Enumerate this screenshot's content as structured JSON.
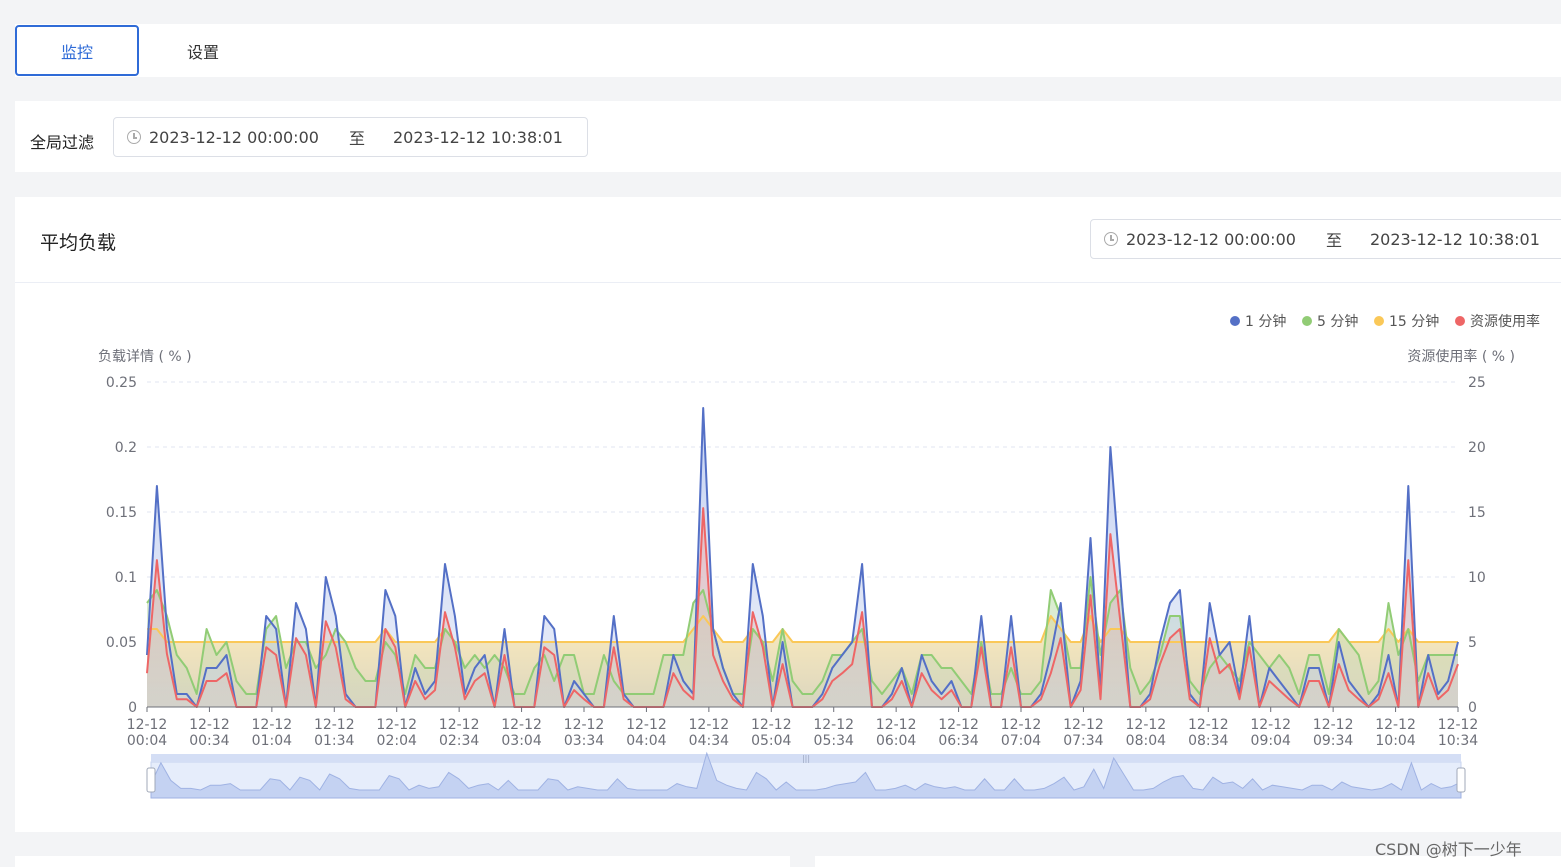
{
  "tabs": [
    {
      "label": "监控",
      "active": true
    },
    {
      "label": "设置",
      "active": false
    }
  ],
  "global_filter": {
    "label": "全局过滤",
    "start": "2023-12-12 00:00:00",
    "separator": "至",
    "end": "2023-12-12 10:38:01"
  },
  "panel": {
    "title": "平均负载",
    "start": "2023-12-12 00:00:00",
    "separator": "至",
    "end": "2023-12-12 10:38:01"
  },
  "watermark": "CSDN @树下一少年",
  "colors": {
    "accent": "#2f6bd7",
    "s1": "#5470c6",
    "s5": "#91cc75",
    "s15": "#fac858",
    "res": "#ee6666"
  },
  "chart_data": {
    "type": "line",
    "ylabel": "负载详情 ( % )",
    "y2label": "资源使用率 ( % )",
    "ylim": [
      0,
      0.25
    ],
    "y2lim": [
      0,
      25
    ],
    "yticks": [
      "0",
      "0.05",
      "0.1",
      "0.15",
      "0.2",
      "0.25"
    ],
    "y2ticks": [
      "0",
      "5",
      "10",
      "15",
      "20",
      "25"
    ],
    "x_ticks": [
      [
        "12-12",
        "00:04"
      ],
      [
        "12-12",
        "00:34"
      ],
      [
        "12-12",
        "01:04"
      ],
      [
        "12-12",
        "01:34"
      ],
      [
        "12-12",
        "02:04"
      ],
      [
        "12-12",
        "02:34"
      ],
      [
        "12-12",
        "03:04"
      ],
      [
        "12-12",
        "03:34"
      ],
      [
        "12-12",
        "04:04"
      ],
      [
        "12-12",
        "04:34"
      ],
      [
        "12-12",
        "05:04"
      ],
      [
        "12-12",
        "05:34"
      ],
      [
        "12-12",
        "06:04"
      ],
      [
        "12-12",
        "06:34"
      ],
      [
        "12-12",
        "07:04"
      ],
      [
        "12-12",
        "07:34"
      ],
      [
        "12-12",
        "08:04"
      ],
      [
        "12-12",
        "08:34"
      ],
      [
        "12-12",
        "09:04"
      ],
      [
        "12-12",
        "09:34"
      ],
      [
        "12-12",
        "10:04"
      ],
      [
        "12-12",
        "10:34"
      ]
    ],
    "legend_position": "top-right",
    "series": [
      {
        "name": "1 分钟",
        "values": [
          0.04,
          0.17,
          0.06,
          0.01,
          0.01,
          0,
          0.03,
          0.03,
          0.04,
          0,
          0,
          0,
          0.07,
          0.06,
          0,
          0.08,
          0.06,
          0,
          0.1,
          0.07,
          0.01,
          0,
          0,
          0,
          0.09,
          0.07,
          0,
          0.03,
          0.01,
          0.02,
          0.11,
          0.07,
          0.01,
          0.03,
          0.04,
          0,
          0.06,
          0,
          0,
          0,
          0.07,
          0.06,
          0,
          0.02,
          0.01,
          0,
          0,
          0.07,
          0.01,
          0,
          0,
          0,
          0,
          0.04,
          0.02,
          0.01,
          0.23,
          0.06,
          0.03,
          0.01,
          0,
          0.11,
          0.07,
          0,
          0.05,
          0,
          0,
          0,
          0.01,
          0.03,
          0.04,
          0.05,
          0.11,
          0,
          0,
          0.01,
          0.03,
          0,
          0.04,
          0.02,
          0.01,
          0.02,
          0,
          0,
          0.07,
          0,
          0,
          0.07,
          0,
          0,
          0.01,
          0.04,
          0.08,
          0,
          0.02,
          0.13,
          0.01,
          0.2,
          0.1,
          0,
          0,
          0.01,
          0.05,
          0.08,
          0.09,
          0.01,
          0,
          0.08,
          0.04,
          0.05,
          0.01,
          0.07,
          0,
          0.03,
          0.02,
          0.01,
          0,
          0.03,
          0.03,
          0,
          0.05,
          0.02,
          0.01,
          0,
          0.01,
          0.04,
          0,
          0.17,
          0,
          0.04,
          0.01,
          0.02,
          0.05
        ]
      },
      {
        "name": "5 分钟",
        "values": [
          0.08,
          0.09,
          0.07,
          0.04,
          0.03,
          0.01,
          0.06,
          0.04,
          0.05,
          0.02,
          0.01,
          0.01,
          0.06,
          0.07,
          0.03,
          0.05,
          0.05,
          0.03,
          0.04,
          0.06,
          0.05,
          0.03,
          0.02,
          0.02,
          0.05,
          0.04,
          0.01,
          0.04,
          0.03,
          0.03,
          0.06,
          0.05,
          0.03,
          0.04,
          0.03,
          0.04,
          0.03,
          0.01,
          0.01,
          0.03,
          0.04,
          0.02,
          0.04,
          0.04,
          0.01,
          0.01,
          0.04,
          0.02,
          0.01,
          0.01,
          0.01,
          0.01,
          0.04,
          0.04,
          0.04,
          0.08,
          0.09,
          0.06,
          0.03,
          0.01,
          0.01,
          0.06,
          0.05,
          0.02,
          0.06,
          0.02,
          0.01,
          0.01,
          0.02,
          0.04,
          0.04,
          0.05,
          0.06,
          0.02,
          0.01,
          0.02,
          0.03,
          0.01,
          0.04,
          0.04,
          0.03,
          0.03,
          0.02,
          0.01,
          0.05,
          0.01,
          0.01,
          0.03,
          0.01,
          0.01,
          0.02,
          0.09,
          0.07,
          0.03,
          0.03,
          0.1,
          0.04,
          0.08,
          0.09,
          0.03,
          0.01,
          0.02,
          0.04,
          0.07,
          0.07,
          0.02,
          0.01,
          0.03,
          0.04,
          0.03,
          0.02,
          0.05,
          0.04,
          0.03,
          0.04,
          0.03,
          0.01,
          0.04,
          0.04,
          0.01,
          0.06,
          0.05,
          0.04,
          0.01,
          0.02,
          0.08,
          0.04,
          0.06,
          0.02,
          0.04,
          0.04,
          0.04,
          0.04
        ]
      },
      {
        "name": "15 分钟",
        "values": [
          0.06,
          0.06,
          0.05,
          0.05,
          0.05,
          0.05,
          0.05,
          0.05,
          0.05,
          0.05,
          0.05,
          0.05,
          0.05,
          0.05,
          0.05,
          0.05,
          0.05,
          0.05,
          0.05,
          0.05,
          0.05,
          0.05,
          0.05,
          0.05,
          0.06,
          0.05,
          0.05,
          0.05,
          0.05,
          0.05,
          0.06,
          0.05,
          0.05,
          0.05,
          0.05,
          0.05,
          0.05,
          0.05,
          0.05,
          0.05,
          0.05,
          0.05,
          0.05,
          0.05,
          0.05,
          0.05,
          0.05,
          0.05,
          0.05,
          0.05,
          0.05,
          0.05,
          0.05,
          0.05,
          0.05,
          0.06,
          0.07,
          0.06,
          0.05,
          0.05,
          0.05,
          0.06,
          0.05,
          0.05,
          0.06,
          0.05,
          0.05,
          0.05,
          0.05,
          0.05,
          0.05,
          0.05,
          0.05,
          0.05,
          0.05,
          0.05,
          0.05,
          0.05,
          0.05,
          0.05,
          0.05,
          0.05,
          0.05,
          0.05,
          0.05,
          0.05,
          0.05,
          0.05,
          0.05,
          0.05,
          0.05,
          0.07,
          0.06,
          0.05,
          0.05,
          0.07,
          0.05,
          0.06,
          0.06,
          0.05,
          0.05,
          0.05,
          0.05,
          0.05,
          0.05,
          0.05,
          0.05,
          0.05,
          0.05,
          0.05,
          0.05,
          0.05,
          0.05,
          0.05,
          0.05,
          0.05,
          0.05,
          0.05,
          0.05,
          0.05,
          0.06,
          0.05,
          0.05,
          0.05,
          0.05,
          0.06,
          0.05,
          0.06,
          0.05,
          0.05,
          0.05,
          0.05,
          0.05
        ]
      },
      {
        "name": "资源使用率",
        "values": [
          2.6,
          11.3,
          4.1,
          0.6,
          0.6,
          0,
          2,
          2,
          2.6,
          0,
          0,
          0,
          4.6,
          4,
          0,
          5.3,
          4,
          0,
          6.6,
          4.6,
          0.6,
          0,
          0,
          0,
          6,
          4.6,
          0,
          2,
          0.6,
          1.3,
          7.3,
          4.6,
          0.6,
          2,
          2.6,
          0,
          4,
          0,
          0,
          0,
          4.6,
          4,
          0,
          1.3,
          0.6,
          0,
          0,
          4.6,
          0.6,
          0,
          0,
          0,
          0,
          2.6,
          1.3,
          0.6,
          15.3,
          4,
          2,
          0.6,
          0,
          7.3,
          4.6,
          0,
          3.3,
          0,
          0,
          0,
          0.6,
          2,
          2.6,
          3.3,
          7.3,
          0,
          0,
          0.6,
          2,
          0,
          2.6,
          1.3,
          0.6,
          1.3,
          0,
          0,
          4.6,
          0,
          0,
          4.6,
          0,
          0,
          0.6,
          2.6,
          5.3,
          0,
          1.3,
          8.6,
          0.6,
          13.3,
          6.6,
          0,
          0,
          0.6,
          3.3,
          5.3,
          6,
          0.6,
          0,
          5.3,
          2.6,
          3.3,
          0.6,
          4.6,
          0,
          2,
          1.3,
          0.6,
          0,
          2,
          2,
          0,
          3.3,
          1.3,
          0.6,
          0,
          0.6,
          2.6,
          0,
          11.3,
          0,
          2.6,
          0.6,
          1.3,
          3.3
        ]
      }
    ]
  }
}
